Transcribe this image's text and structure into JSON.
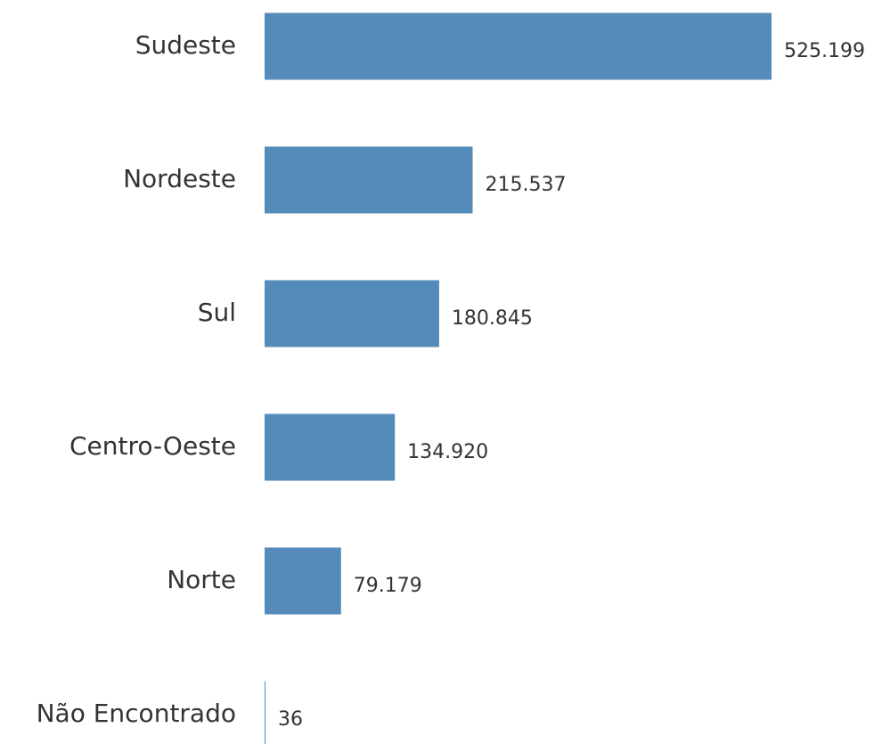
{
  "chart_data": {
    "type": "hbar",
    "categories": [
      "Sudeste",
      "Nordeste",
      "Sul",
      "Centro-Oeste",
      "Norte",
      "Não Encontrado"
    ],
    "values": [
      525199,
      215537,
      180845,
      134920,
      79179,
      36
    ],
    "value_labels": [
      "525.199",
      "215.537",
      "180.845",
      "134.920",
      "79.179",
      "36"
    ],
    "color": "#548bbb"
  }
}
